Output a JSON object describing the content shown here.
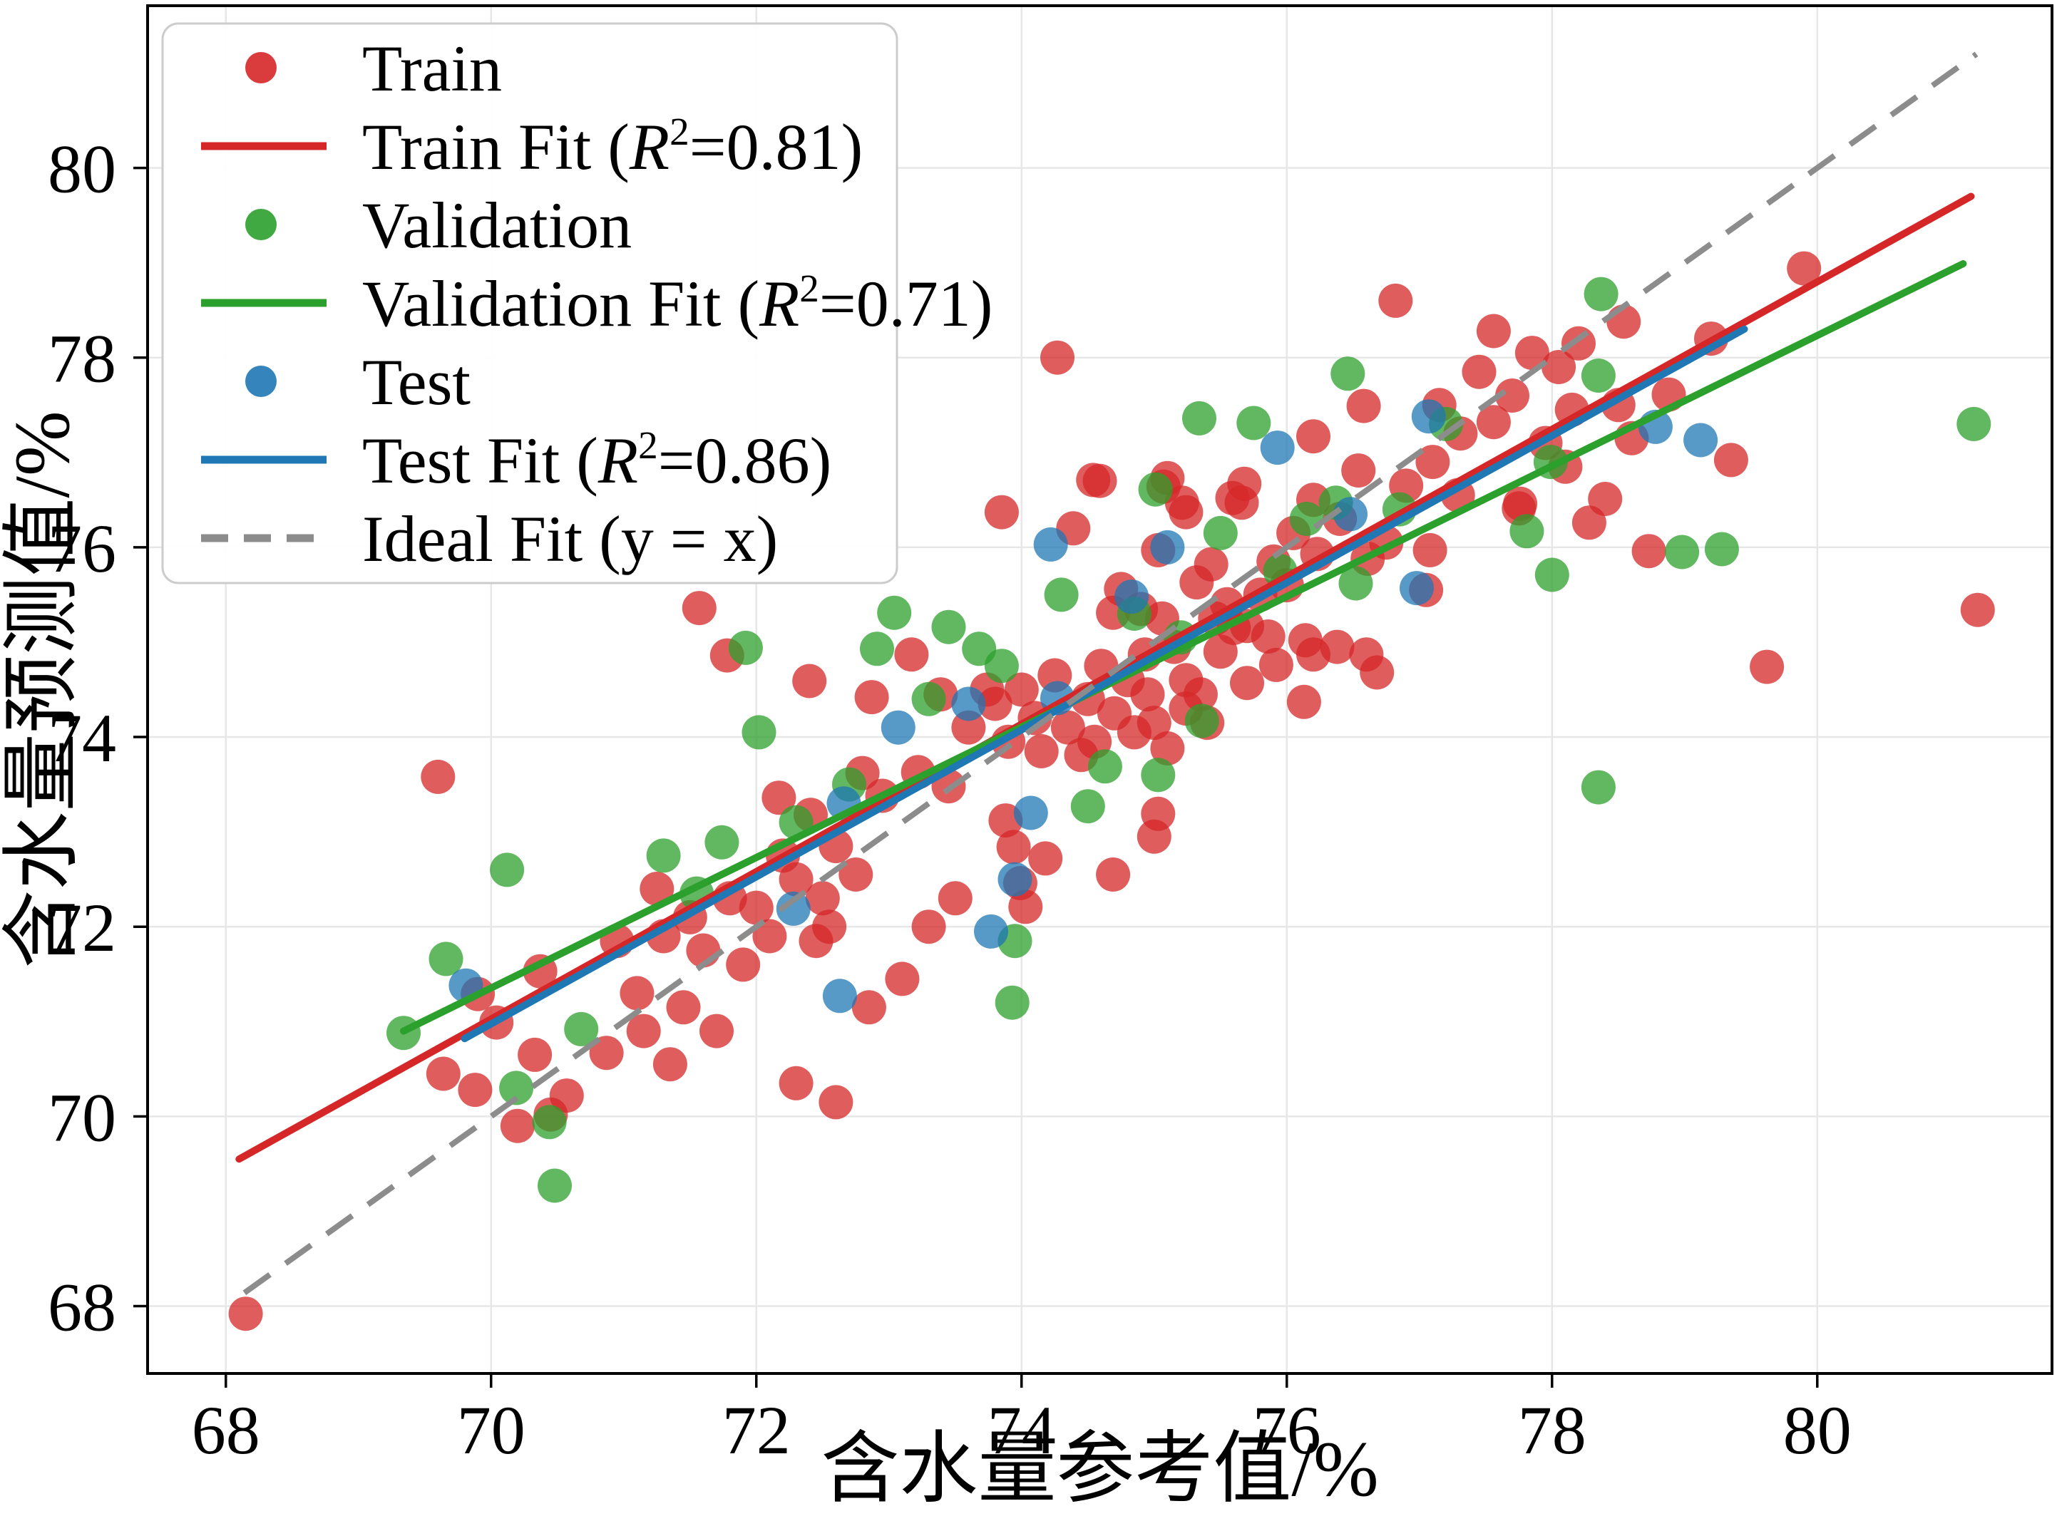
{
  "chart_data": {
    "type": "scatter",
    "title": "",
    "xlabel": "含水量参考值/%",
    "ylabel": "含水量预测值/%",
    "xlim": [
      67.41,
      81.77
    ],
    "ylim": [
      67.29,
      81.71
    ],
    "xticks": [
      68,
      70,
      72,
      74,
      76,
      78,
      80
    ],
    "yticks": [
      68,
      70,
      72,
      74,
      76,
      78,
      80
    ],
    "grid": true,
    "legend_position": "upper left",
    "colors": {
      "train": "#d62728",
      "validation": "#2ca02c",
      "test": "#1f77b4",
      "ideal": "#8c8c8c",
      "grid": "#e7e7e7",
      "legend_border": "#cccccc"
    },
    "series": [
      {
        "name": "Train",
        "type": "scatter",
        "color": "#d62728",
        "marker_opacity": 0.75,
        "points": [
          [
            68.15,
            67.92
          ],
          [
            69.6,
            73.58
          ],
          [
            69.64,
            70.45
          ],
          [
            69.88,
            70.28
          ],
          [
            69.9,
            71.29
          ],
          [
            70.04,
            70.99
          ],
          [
            70.2,
            69.9
          ],
          [
            70.33,
            70.65
          ],
          [
            70.37,
            71.53
          ],
          [
            70.45,
            70.02
          ],
          [
            70.57,
            70.22
          ],
          [
            70.87,
            70.67
          ],
          [
            70.95,
            71.85
          ],
          [
            71.1,
            71.3
          ],
          [
            71.15,
            70.9
          ],
          [
            71.25,
            72.4
          ],
          [
            71.3,
            71.9
          ],
          [
            71.35,
            70.55
          ],
          [
            71.45,
            71.15
          ],
          [
            71.5,
            72.1
          ],
          [
            71.57,
            75.36
          ],
          [
            71.6,
            71.75
          ],
          [
            71.7,
            70.9
          ],
          [
            71.78,
            74.86
          ],
          [
            71.8,
            72.3
          ],
          [
            71.9,
            71.6
          ],
          [
            72.0,
            72.2
          ],
          [
            72.1,
            71.9
          ],
          [
            72.17,
            73.36
          ],
          [
            72.2,
            72.75
          ],
          [
            72.3,
            72.5
          ],
          [
            72.3,
            70.35
          ],
          [
            72.4,
            74.59
          ],
          [
            72.41,
            73.18
          ],
          [
            72.45,
            71.85
          ],
          [
            72.5,
            72.3
          ],
          [
            72.55,
            72.0
          ],
          [
            72.6,
            70.15
          ],
          [
            72.6,
            72.85
          ],
          [
            72.75,
            72.55
          ],
          [
            72.8,
            73.62
          ],
          [
            72.85,
            71.15
          ],
          [
            72.87,
            74.42
          ],
          [
            72.95,
            73.38
          ],
          [
            73.1,
            71.45
          ],
          [
            73.17,
            74.87
          ],
          [
            73.22,
            73.63
          ],
          [
            73.3,
            72.0
          ],
          [
            73.39,
            74.45
          ],
          [
            73.45,
            73.48
          ],
          [
            73.5,
            72.3
          ],
          [
            73.6,
            74.1
          ],
          [
            73.74,
            74.5
          ],
          [
            73.8,
            74.35
          ],
          [
            73.85,
            76.37
          ],
          [
            73.88,
            73.12
          ],
          [
            73.9,
            73.95
          ],
          [
            73.94,
            72.84
          ],
          [
            73.99,
            72.46
          ],
          [
            74.0,
            74.5
          ],
          [
            74.03,
            72.21
          ],
          [
            74.1,
            74.2
          ],
          [
            74.15,
            73.85
          ],
          [
            74.18,
            72.72
          ],
          [
            74.25,
            74.65
          ],
          [
            74.27,
            78.0
          ],
          [
            74.35,
            74.1
          ],
          [
            74.39,
            76.2
          ],
          [
            74.45,
            73.81
          ],
          [
            74.5,
            74.4
          ],
          [
            74.54,
            76.71
          ],
          [
            74.55,
            73.95
          ],
          [
            74.59,
            76.7
          ],
          [
            74.6,
            74.75
          ],
          [
            74.69,
            75.31
          ],
          [
            74.69,
            72.55
          ],
          [
            74.7,
            74.25
          ],
          [
            74.75,
            75.56
          ],
          [
            74.8,
            74.6
          ],
          [
            74.85,
            74.05
          ],
          [
            74.9,
            75.35
          ],
          [
            74.93,
            74.87
          ],
          [
            74.95,
            74.45
          ],
          [
            75.0,
            74.15
          ],
          [
            75.0,
            72.95
          ],
          [
            75.03,
            75.97
          ],
          [
            75.03,
            73.19
          ],
          [
            75.06,
            75.25
          ],
          [
            75.07,
            76.64
          ],
          [
            75.1,
            76.73
          ],
          [
            75.1,
            73.88
          ],
          [
            75.15,
            74.95
          ],
          [
            75.21,
            76.47
          ],
          [
            75.24,
            76.37
          ],
          [
            75.24,
            74.6
          ],
          [
            75.24,
            74.3
          ],
          [
            75.32,
            75.63
          ],
          [
            75.35,
            74.45
          ],
          [
            75.4,
            74.15
          ],
          [
            75.43,
            75.82
          ],
          [
            75.46,
            75.25
          ],
          [
            75.5,
            74.9
          ],
          [
            75.55,
            75.4
          ],
          [
            75.59,
            76.52
          ],
          [
            75.6,
            75.15
          ],
          [
            75.66,
            76.47
          ],
          [
            75.68,
            76.67
          ],
          [
            75.7,
            75.17
          ],
          [
            75.7,
            74.57
          ],
          [
            75.8,
            75.5
          ],
          [
            75.86,
            75.06
          ],
          [
            75.9,
            75.85
          ],
          [
            75.92,
            74.76
          ],
          [
            76.0,
            75.6
          ],
          [
            76.05,
            76.15
          ],
          [
            76.13,
            74.37
          ],
          [
            76.14,
            75.02
          ],
          [
            76.2,
            74.87
          ],
          [
            76.2,
            77.17
          ],
          [
            76.2,
            76.5
          ],
          [
            76.23,
            75.93
          ],
          [
            76.38,
            74.95
          ],
          [
            76.4,
            76.3
          ],
          [
            76.54,
            76.81
          ],
          [
            76.58,
            77.49
          ],
          [
            76.6,
            74.87
          ],
          [
            76.61,
            75.88
          ],
          [
            76.68,
            74.68
          ],
          [
            76.75,
            76.05
          ],
          [
            76.82,
            78.6
          ],
          [
            76.9,
            76.65
          ],
          [
            77.05,
            75.55
          ],
          [
            77.08,
            75.97
          ],
          [
            77.1,
            76.9
          ],
          [
            77.15,
            77.5
          ],
          [
            77.29,
            76.55
          ],
          [
            77.31,
            77.2
          ],
          [
            77.45,
            77.85
          ],
          [
            77.56,
            78.28
          ],
          [
            77.56,
            77.32
          ],
          [
            77.7,
            77.6
          ],
          [
            77.75,
            76.41
          ],
          [
            77.76,
            76.46
          ],
          [
            77.85,
            78.05
          ],
          [
            77.95,
            77.1
          ],
          [
            78.05,
            77.9
          ],
          [
            78.1,
            76.85
          ],
          [
            78.15,
            77.45
          ],
          [
            78.2,
            78.15
          ],
          [
            78.28,
            76.26
          ],
          [
            78.4,
            76.51
          ],
          [
            78.5,
            77.5
          ],
          [
            78.54,
            78.38
          ],
          [
            78.6,
            77.15
          ],
          [
            78.73,
            75.96
          ],
          [
            78.88,
            77.61
          ],
          [
            79.2,
            78.2
          ],
          [
            79.35,
            76.92
          ],
          [
            79.62,
            74.74
          ],
          [
            79.9,
            78.94
          ],
          [
            81.21,
            75.34
          ]
        ]
      },
      {
        "name": "Train Fit (R²=0.81)",
        "type": "line",
        "color": "#d62728",
        "r2": 0.81,
        "x": [
          68.1,
          81.16
        ],
        "y": [
          69.55,
          79.7
        ]
      },
      {
        "name": "Validation",
        "type": "scatter",
        "color": "#2ca02c",
        "marker_opacity": 0.75,
        "points": [
          [
            69.34,
            70.88
          ],
          [
            69.66,
            71.66
          ],
          [
            70.12,
            72.6
          ],
          [
            70.19,
            70.3
          ],
          [
            70.44,
            69.94
          ],
          [
            70.48,
            69.27
          ],
          [
            70.68,
            70.92
          ],
          [
            71.3,
            72.75
          ],
          [
            71.55,
            72.35
          ],
          [
            71.74,
            72.89
          ],
          [
            71.92,
            74.94
          ],
          [
            72.02,
            74.05
          ],
          [
            72.3,
            73.1
          ],
          [
            72.7,
            73.5
          ],
          [
            72.91,
            74.93
          ],
          [
            73.04,
            75.31
          ],
          [
            73.3,
            74.4
          ],
          [
            73.45,
            75.16
          ],
          [
            73.68,
            74.93
          ],
          [
            73.85,
            74.75
          ],
          [
            73.93,
            71.2
          ],
          [
            73.95,
            71.85
          ],
          [
            74.3,
            75.5
          ],
          [
            74.5,
            73.27
          ],
          [
            74.63,
            73.69
          ],
          [
            74.85,
            75.3
          ],
          [
            75.03,
            73.6
          ],
          [
            75.01,
            76.61
          ],
          [
            75.2,
            75.05
          ],
          [
            75.34,
            77.36
          ],
          [
            75.36,
            74.17
          ],
          [
            75.5,
            76.15
          ],
          [
            75.75,
            77.31
          ],
          [
            75.95,
            75.75
          ],
          [
            76.15,
            76.3
          ],
          [
            76.37,
            76.47
          ],
          [
            76.46,
            77.83
          ],
          [
            76.52,
            75.62
          ],
          [
            76.85,
            76.4
          ],
          [
            77.2,
            77.3
          ],
          [
            77.81,
            76.17
          ],
          [
            77.99,
            76.9
          ],
          [
            78.0,
            75.71
          ],
          [
            78.35,
            77.81
          ],
          [
            78.35,
            73.47
          ],
          [
            78.37,
            78.67
          ],
          [
            78.98,
            75.95
          ],
          [
            79.28,
            75.98
          ],
          [
            81.18,
            77.3
          ]
        ]
      },
      {
        "name": "Validation Fit (R²=0.71)",
        "type": "line",
        "color": "#2ca02c",
        "r2": 0.71,
        "x": [
          69.34,
          81.1
        ],
        "y": [
          70.9,
          78.99
        ]
      },
      {
        "name": "Test",
        "type": "scatter",
        "color": "#1f77b4",
        "marker_opacity": 0.75,
        "points": [
          [
            69.81,
            71.38
          ],
          [
            72.28,
            72.19
          ],
          [
            72.63,
            71.27
          ],
          [
            72.66,
            73.3
          ],
          [
            73.07,
            74.1
          ],
          [
            73.6,
            74.35
          ],
          [
            73.77,
            71.95
          ],
          [
            73.95,
            72.5
          ],
          [
            74.07,
            73.2
          ],
          [
            74.22,
            76.03
          ],
          [
            74.27,
            74.41
          ],
          [
            74.83,
            75.48
          ],
          [
            75.1,
            76.0
          ],
          [
            75.93,
            77.05
          ],
          [
            76.48,
            76.35
          ],
          [
            76.98,
            75.57
          ],
          [
            77.07,
            77.38
          ],
          [
            78.78,
            77.27
          ],
          [
            79.12,
            77.13
          ]
        ]
      },
      {
        "name": "Test Fit (R²=0.86)",
        "type": "line",
        "color": "#1f77b4",
        "r2": 0.86,
        "x": [
          69.8,
          79.45
        ],
        "y": [
          70.82,
          78.3
        ]
      },
      {
        "name": "Ideal Fit (y = x)",
        "type": "line",
        "dashed": true,
        "color": "#8c8c8c",
        "x": [
          68.14,
          81.2
        ],
        "y": [
          68.14,
          81.2
        ]
      }
    ],
    "legend": [
      {
        "label": "Train",
        "marker": "dot",
        "color": "#d62728"
      },
      {
        "label": "Train Fit (R²=0.81)",
        "marker": "line",
        "color": "#d62728"
      },
      {
        "label": "Validation",
        "marker": "dot",
        "color": "#2ca02c"
      },
      {
        "label": "Validation Fit (R²=0.71)",
        "marker": "line",
        "color": "#2ca02c"
      },
      {
        "label": "Test",
        "marker": "dot",
        "color": "#1f77b4"
      },
      {
        "label": "Test Fit (R²=0.86)",
        "marker": "line",
        "color": "#1f77b4"
      },
      {
        "label": "Ideal Fit (y = x)",
        "marker": "dashed-line",
        "color": "#8c8c8c"
      }
    ]
  }
}
